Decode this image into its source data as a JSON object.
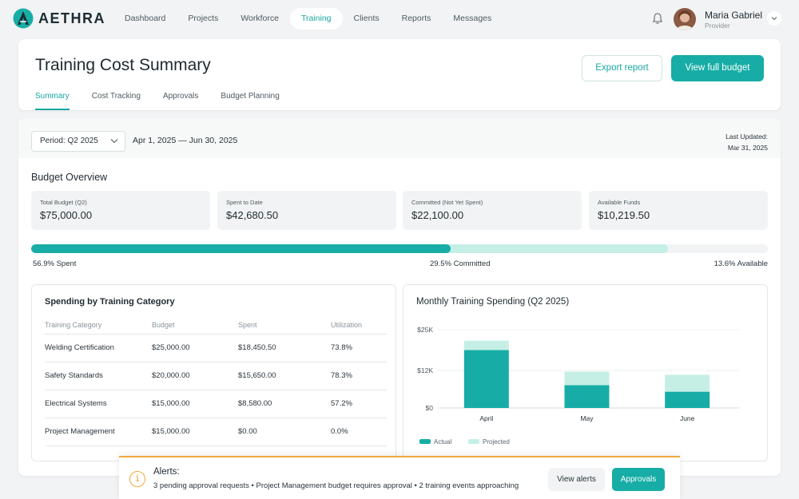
{
  "brand": {
    "name": "AETHRA",
    "accent": "#17ada6",
    "warning": "#f0a93b"
  },
  "nav": {
    "links": [
      {
        "label": "Dashboard"
      },
      {
        "label": "Projects"
      },
      {
        "label": "Workforce"
      },
      {
        "label": "Training",
        "active": true
      },
      {
        "label": "Clients"
      },
      {
        "label": "Reports"
      },
      {
        "label": "Messages"
      }
    ],
    "bell_icon": "bell-icon",
    "user": {
      "name": "Maria Gabriel",
      "role": "Provider"
    }
  },
  "header": {
    "title": "Training Cost Summary",
    "export_label": "Export report",
    "budget_label": "View full budget",
    "tabs": [
      {
        "label": "Summary",
        "active": true
      },
      {
        "label": "Cost Tracking"
      },
      {
        "label": "Approvals"
      },
      {
        "label": "Budget Planning"
      }
    ]
  },
  "period": {
    "selected": "Period: Q2 2025",
    "range": "Apr 1, 2025 — Jun 30, 2025",
    "last_updated_label": "Last Updated:",
    "last_updated_value": "Mar 31, 2025"
  },
  "overview": {
    "title": "Budget Overview",
    "stats": [
      {
        "label": "Total Budget (Q2)",
        "value": "$75,000.00"
      },
      {
        "label": "Spent to Date",
        "value": "$42,680.50"
      },
      {
        "label": "Committed (Not Yet Spent)",
        "value": "$22,100.00"
      },
      {
        "label": "Available Funds",
        "value": "$10,219.50"
      }
    ],
    "progress": {
      "spent_pct": 56.9,
      "committed_pct": 29.5,
      "available_pct": 13.6,
      "spent_label": "56.9% Spent",
      "committed_label": "29.5% Committed",
      "available_label": "13.6% Available"
    }
  },
  "categories": {
    "title": "Spending by Training Category",
    "headers": [
      "Training Category",
      "Budget",
      "Spent",
      "Utilization"
    ],
    "rows": [
      [
        "Welding Certification",
        "$25,000.00",
        "$18,450.50",
        "73.8%"
      ],
      [
        "Safety Standards",
        "$20,000.00",
        "$15,650.00",
        "78.3%"
      ],
      [
        "Electrical Systems",
        "$15,000.00",
        "$8,580.00",
        "57.2%"
      ],
      [
        "Project Management",
        "$15,000.00",
        "$0.00",
        "0.0%"
      ]
    ]
  },
  "chart_data": {
    "type": "bar",
    "title": "Monthly Training Spending (Q2 2025)",
    "categories": [
      "April",
      "May",
      "June"
    ],
    "series": [
      {
        "name": "Actual",
        "values": [
          18500,
          7300,
          5200
        ],
        "color": "#17ada6"
      },
      {
        "name": "Projected",
        "values": [
          3000,
          4300,
          5400
        ],
        "color": "#c5efe5"
      }
    ],
    "stacked": true,
    "yticks": [
      "$0",
      "$12K",
      "$25K"
    ],
    "ytick_values": [
      0,
      12000,
      25000
    ],
    "ylim": [
      0,
      25000
    ],
    "legend_position": "bottom-left"
  },
  "alert": {
    "title": "Alerts:",
    "text": "3 pending approval requests • Project Management budget requires approval • 2 training events approaching",
    "view_label": "View alerts",
    "approvals_label": "Approvals"
  }
}
